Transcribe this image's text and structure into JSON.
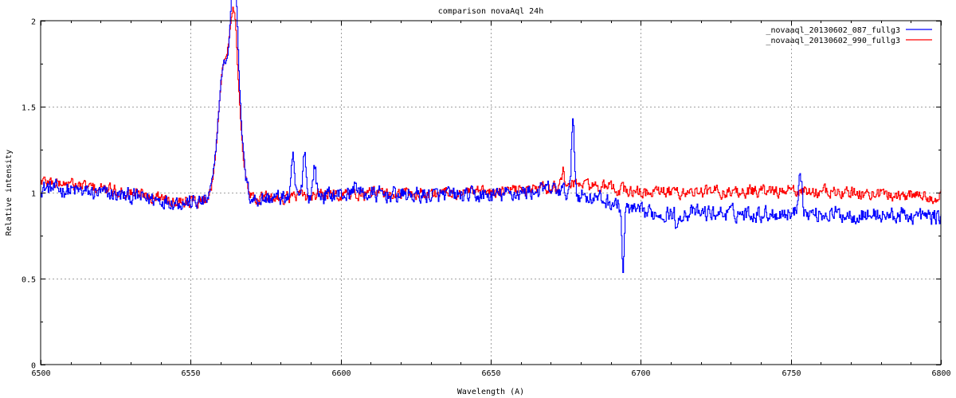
{
  "chart_data": {
    "type": "line",
    "title": "comparison novaAql 24h",
    "xlabel": "Wavelength (A)",
    "ylabel": "Relative intensity",
    "xlim": [
      6500,
      6800
    ],
    "ylim": [
      0,
      2
    ],
    "x_ticks": [
      "6500",
      "6550",
      "6600",
      "6650",
      "6700",
      "6750",
      "6800"
    ],
    "y_ticks": [
      "0",
      "0.5",
      "1",
      "1.5",
      "2"
    ],
    "grid": true,
    "legend_position": "top-right",
    "series": [
      {
        "name": "_novaaql_20130602_087_fullg3",
        "color": "#0000ff",
        "continuum": [
          [
            6500,
            1.03
          ],
          [
            6550,
            0.94
          ],
          [
            6600,
            0.99
          ],
          [
            6650,
            0.98
          ],
          [
            6670,
            1.02
          ],
          [
            6685,
            0.97
          ],
          [
            6700,
            0.88
          ],
          [
            6750,
            0.88
          ],
          [
            6800,
            0.86
          ]
        ],
        "noise": 0.045,
        "features": [
          {
            "x": 6561.0,
            "amp": 0.78,
            "width": 2.0
          },
          {
            "x": 6564.4,
            "amp": 0.95,
            "width": 1.2
          },
          {
            "x": 6566.0,
            "amp": 0.35,
            "width": 1.6
          },
          {
            "x": 6584.0,
            "amp": 0.22,
            "width": 0.5
          },
          {
            "x": 6587.8,
            "amp": 0.28,
            "width": 0.5
          },
          {
            "x": 6591.2,
            "amp": 0.18,
            "width": 0.5
          },
          {
            "x": 6605.0,
            "amp": 0.06,
            "width": 0.8
          },
          {
            "x": 6677.3,
            "amp": 0.45,
            "width": 0.45
          },
          {
            "x": 6694.0,
            "amp": -0.36,
            "width": 0.4
          },
          {
            "x": 6712.0,
            "amp": -0.12,
            "width": 0.4
          },
          {
            "x": 6753.0,
            "amp": 0.26,
            "width": 0.6
          }
        ]
      },
      {
        "name": "_novaaql_20130602_990_fullg3",
        "color": "#ff0000",
        "continuum": [
          [
            6500,
            1.07
          ],
          [
            6550,
            0.95
          ],
          [
            6600,
            0.99
          ],
          [
            6650,
            1.0
          ],
          [
            6680,
            1.05
          ],
          [
            6700,
            1.0
          ],
          [
            6750,
            1.01
          ],
          [
            6800,
            0.98
          ]
        ],
        "noise": 0.035,
        "features": [
          {
            "x": 6561.0,
            "amp": 0.76,
            "width": 2.0
          },
          {
            "x": 6564.2,
            "amp": 0.74,
            "width": 1.3
          },
          {
            "x": 6566.0,
            "amp": 0.3,
            "width": 1.6
          },
          {
            "x": 6674.0,
            "amp": 0.08,
            "width": 0.5
          }
        ]
      }
    ]
  }
}
